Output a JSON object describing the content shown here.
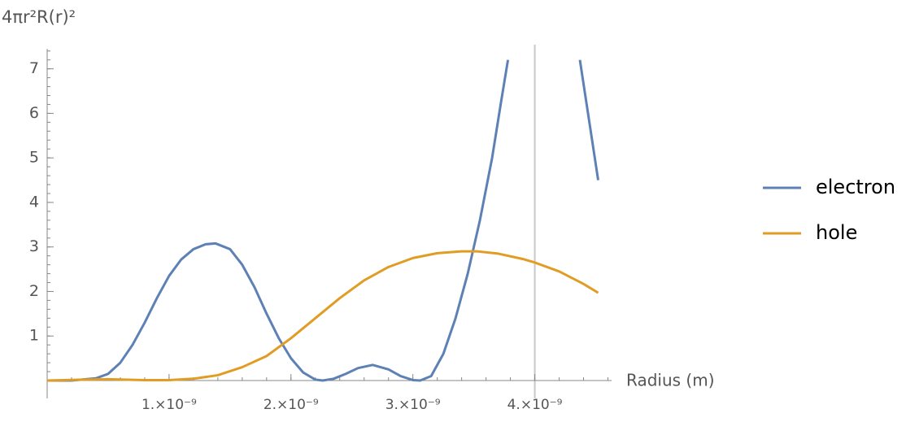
{
  "chart_data": {
    "type": "line",
    "y_label": "4πr²R(r)²",
    "x_label": "Radius (m)",
    "xlim": [
      0,
      4.63e-09
    ],
    "ylim": [
      0,
      7.45
    ],
    "xticks": [
      {
        "value": 1e-09,
        "label": "1.×10⁻⁹"
      },
      {
        "value": 2e-09,
        "label": "2.×10⁻⁹"
      },
      {
        "value": 3e-09,
        "label": "3.×10⁻⁹"
      },
      {
        "value": 4e-09,
        "label": "4.×10⁻⁹"
      }
    ],
    "yticks": [
      1,
      2,
      3,
      4,
      5,
      6,
      7
    ],
    "vertical_lines": [
      4e-09
    ],
    "series": [
      {
        "name": "electron",
        "color": "#5e81b5",
        "x": [
          0,
          2e-10,
          4e-10,
          5e-10,
          6e-10,
          7e-10,
          8e-10,
          9e-10,
          1e-09,
          1.1e-09,
          1.2e-09,
          1.3e-09,
          1.38e-09,
          1.5e-09,
          1.6e-09,
          1.7e-09,
          1.8e-09,
          1.9e-09,
          2e-09,
          2.1e-09,
          2.2e-09,
          2.26e-09,
          2.35e-09,
          2.45e-09,
          2.55e-09,
          2.67e-09,
          2.8e-09,
          2.9e-09,
          3e-09,
          3.06e-09,
          3.15e-09,
          3.25e-09,
          3.35e-09,
          3.45e-09,
          3.55e-09,
          3.65e-09,
          3.72e-09,
          3.78e-09,
          4.1e-09,
          4.37e-09,
          4.52e-09
        ],
        "values": [
          0,
          0,
          0.05,
          0.15,
          0.4,
          0.8,
          1.3,
          1.85,
          2.35,
          2.72,
          2.95,
          3.06,
          3.08,
          2.95,
          2.6,
          2.1,
          1.5,
          0.95,
          0.5,
          0.18,
          0.02,
          0,
          0.04,
          0.15,
          0.28,
          0.35,
          0.25,
          0.1,
          0.01,
          0,
          0.1,
          0.6,
          1.4,
          2.4,
          3.6,
          5.0,
          6.2,
          7.2,
          null,
          7.2,
          4.5
        ]
      },
      {
        "name": "hole",
        "color": "#e19c24",
        "x": [
          0,
          3e-10,
          5e-10,
          8e-10,
          1e-09,
          1.2e-09,
          1.4e-09,
          1.6e-09,
          1.8e-09,
          2e-09,
          2.2e-09,
          2.4e-09,
          2.6e-09,
          2.8e-09,
          3e-09,
          3.2e-09,
          3.4e-09,
          3.53e-09,
          3.7e-09,
          3.9e-09,
          4e-09,
          4.2e-09,
          4.4e-09,
          4.52e-09
        ],
        "values": [
          0,
          0.02,
          0.03,
          0.01,
          0.01,
          0.04,
          0.12,
          0.3,
          0.55,
          0.95,
          1.4,
          1.85,
          2.25,
          2.55,
          2.75,
          2.86,
          2.9,
          2.9,
          2.85,
          2.73,
          2.65,
          2.45,
          2.17,
          1.97
        ]
      }
    ]
  }
}
